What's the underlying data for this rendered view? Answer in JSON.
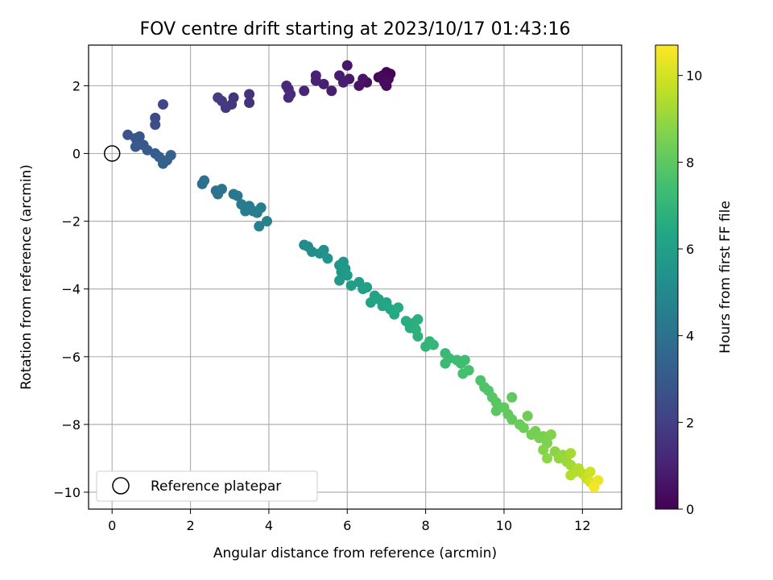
{
  "chart_data": {
    "type": "scatter",
    "title": "FOV centre drift starting at 2023/10/17 01:43:16",
    "xlabel": "Angular distance from reference (arcmin)",
    "ylabel": "Rotation from reference (arcmin)",
    "xlim": [
      -0.6,
      13.0
    ],
    "ylim": [
      -10.5,
      3.2
    ],
    "xticks": [
      0,
      2,
      4,
      6,
      8,
      10,
      12
    ],
    "yticks": [
      -10,
      -8,
      -6,
      -4,
      -2,
      0,
      2
    ],
    "grid": true,
    "colormap": "viridis",
    "colorbar": {
      "label": "Hours from first FF file",
      "range": [
        0,
        10.7
      ],
      "ticks": [
        0,
        2,
        4,
        6,
        8,
        10
      ]
    },
    "legend": {
      "position": "lower-left",
      "entries": [
        "Reference platepar"
      ]
    },
    "reference_point": {
      "x": 0,
      "y": 0
    },
    "points": [
      {
        "x": 7.0,
        "y": 2.4,
        "c": 0.05
      },
      {
        "x": 7.1,
        "y": 2.35,
        "c": 0.1
      },
      {
        "x": 6.9,
        "y": 2.3,
        "c": 0.15
      },
      {
        "x": 7.05,
        "y": 2.2,
        "c": 0.2
      },
      {
        "x": 6.8,
        "y": 2.25,
        "c": 0.25
      },
      {
        "x": 7.0,
        "y": 2.0,
        "c": 0.3
      },
      {
        "x": 6.95,
        "y": 2.1,
        "c": 0.35
      },
      {
        "x": 6.5,
        "y": 2.1,
        "c": 0.45
      },
      {
        "x": 6.3,
        "y": 2.0,
        "c": 0.55
      },
      {
        "x": 6.4,
        "y": 2.2,
        "c": 0.6
      },
      {
        "x": 6.0,
        "y": 2.6,
        "c": 0.7
      },
      {
        "x": 6.05,
        "y": 2.2,
        "c": 0.75
      },
      {
        "x": 5.8,
        "y": 2.3,
        "c": 0.8
      },
      {
        "x": 5.9,
        "y": 2.1,
        "c": 0.85
      },
      {
        "x": 5.6,
        "y": 1.85,
        "c": 0.9
      },
      {
        "x": 5.4,
        "y": 2.05,
        "c": 0.95
      },
      {
        "x": 5.2,
        "y": 2.3,
        "c": 1.0
      },
      {
        "x": 5.2,
        "y": 2.15,
        "c": 1.05
      },
      {
        "x": 4.9,
        "y": 1.85,
        "c": 1.1
      },
      {
        "x": 4.5,
        "y": 1.9,
        "c": 1.2
      },
      {
        "x": 4.45,
        "y": 2.0,
        "c": 1.25
      },
      {
        "x": 4.5,
        "y": 1.65,
        "c": 1.3
      },
      {
        "x": 4.55,
        "y": 1.75,
        "c": 1.35
      },
      {
        "x": 3.5,
        "y": 1.75,
        "c": 1.5
      },
      {
        "x": 3.5,
        "y": 1.5,
        "c": 1.55
      },
      {
        "x": 3.1,
        "y": 1.65,
        "c": 1.65
      },
      {
        "x": 3.05,
        "y": 1.45,
        "c": 1.7
      },
      {
        "x": 2.9,
        "y": 1.35,
        "c": 1.75
      },
      {
        "x": 2.8,
        "y": 1.55,
        "c": 1.8
      },
      {
        "x": 2.7,
        "y": 1.65,
        "c": 1.9
      },
      {
        "x": 1.3,
        "y": 1.45,
        "c": 2.2
      },
      {
        "x": 1.1,
        "y": 1.05,
        "c": 2.4
      },
      {
        "x": 1.1,
        "y": 0.85,
        "c": 2.5
      },
      {
        "x": 0.4,
        "y": 0.55,
        "c": 2.7
      },
      {
        "x": 0.6,
        "y": 0.45,
        "c": 2.8
      },
      {
        "x": 0.7,
        "y": 0.5,
        "c": 2.85
      },
      {
        "x": 0.65,
        "y": 0.25,
        "c": 2.9
      },
      {
        "x": 0.8,
        "y": 0.25,
        "c": 2.95
      },
      {
        "x": 0.6,
        "y": 0.2,
        "c": 3.0
      },
      {
        "x": 0.9,
        "y": 0.1,
        "c": 3.05
      },
      {
        "x": 1.1,
        "y": 0.0,
        "c": 3.15
      },
      {
        "x": 1.2,
        "y": -0.1,
        "c": 3.2
      },
      {
        "x": 1.5,
        "y": -0.05,
        "c": 3.25
      },
      {
        "x": 1.4,
        "y": -0.2,
        "c": 3.3
      },
      {
        "x": 1.3,
        "y": -0.3,
        "c": 3.35
      },
      {
        "x": 2.3,
        "y": -0.9,
        "c": 3.9
      },
      {
        "x": 2.35,
        "y": -0.8,
        "c": 3.95
      },
      {
        "x": 2.65,
        "y": -1.1,
        "c": 4.0
      },
      {
        "x": 2.7,
        "y": -1.2,
        "c": 4.05
      },
      {
        "x": 2.8,
        "y": -1.05,
        "c": 4.1
      },
      {
        "x": 3.1,
        "y": -1.2,
        "c": 4.2
      },
      {
        "x": 3.2,
        "y": -1.25,
        "c": 4.25
      },
      {
        "x": 3.3,
        "y": -1.5,
        "c": 4.35
      },
      {
        "x": 3.4,
        "y": -1.7,
        "c": 4.4
      },
      {
        "x": 3.5,
        "y": -1.55,
        "c": 4.45
      },
      {
        "x": 3.6,
        "y": -1.7,
        "c": 4.5
      },
      {
        "x": 3.7,
        "y": -1.75,
        "c": 4.55
      },
      {
        "x": 3.8,
        "y": -1.6,
        "c": 4.6
      },
      {
        "x": 3.75,
        "y": -2.15,
        "c": 4.65
      },
      {
        "x": 3.95,
        "y": -2.0,
        "c": 4.7
      },
      {
        "x": 4.9,
        "y": -2.7,
        "c": 5.1
      },
      {
        "x": 5.0,
        "y": -2.75,
        "c": 5.15
      },
      {
        "x": 5.1,
        "y": -2.9,
        "c": 5.2
      },
      {
        "x": 5.3,
        "y": -2.95,
        "c": 5.3
      },
      {
        "x": 5.4,
        "y": -2.85,
        "c": 5.35
      },
      {
        "x": 5.5,
        "y": -3.1,
        "c": 5.4
      },
      {
        "x": 5.8,
        "y": -3.3,
        "c": 5.55
      },
      {
        "x": 5.9,
        "y": -3.2,
        "c": 5.6
      },
      {
        "x": 5.85,
        "y": -3.5,
        "c": 5.65
      },
      {
        "x": 5.95,
        "y": -3.4,
        "c": 5.7
      },
      {
        "x": 5.8,
        "y": -3.75,
        "c": 5.75
      },
      {
        "x": 6.0,
        "y": -3.6,
        "c": 5.8
      },
      {
        "x": 6.1,
        "y": -3.9,
        "c": 5.9
      },
      {
        "x": 6.3,
        "y": -3.8,
        "c": 5.95
      },
      {
        "x": 6.4,
        "y": -4.0,
        "c": 6.0
      },
      {
        "x": 6.5,
        "y": -3.95,
        "c": 6.05
      },
      {
        "x": 6.7,
        "y": -4.2,
        "c": 6.15
      },
      {
        "x": 6.6,
        "y": -4.4,
        "c": 6.2
      },
      {
        "x": 6.8,
        "y": -4.3,
        "c": 6.25
      },
      {
        "x": 6.9,
        "y": -4.5,
        "c": 6.3
      },
      {
        "x": 7.0,
        "y": -4.4,
        "c": 6.35
      },
      {
        "x": 7.1,
        "y": -4.6,
        "c": 6.4
      },
      {
        "x": 7.2,
        "y": -4.75,
        "c": 6.45
      },
      {
        "x": 7.3,
        "y": -4.55,
        "c": 6.5
      },
      {
        "x": 7.5,
        "y": -4.95,
        "c": 6.6
      },
      {
        "x": 7.6,
        "y": -5.15,
        "c": 6.65
      },
      {
        "x": 7.7,
        "y": -5.0,
        "c": 6.7
      },
      {
        "x": 7.8,
        "y": -4.9,
        "c": 6.75
      },
      {
        "x": 7.75,
        "y": -5.2,
        "c": 6.8
      },
      {
        "x": 7.8,
        "y": -5.4,
        "c": 6.85
      },
      {
        "x": 8.0,
        "y": -5.7,
        "c": 6.95
      },
      {
        "x": 8.1,
        "y": -5.55,
        "c": 7.0
      },
      {
        "x": 8.2,
        "y": -5.65,
        "c": 7.05
      },
      {
        "x": 8.5,
        "y": -5.9,
        "c": 7.15
      },
      {
        "x": 8.6,
        "y": -6.05,
        "c": 7.2
      },
      {
        "x": 8.5,
        "y": -6.2,
        "c": 7.25
      },
      {
        "x": 8.8,
        "y": -6.1,
        "c": 7.3
      },
      {
        "x": 8.9,
        "y": -6.2,
        "c": 7.35
      },
      {
        "x": 9.0,
        "y": -6.1,
        "c": 7.4
      },
      {
        "x": 8.95,
        "y": -6.5,
        "c": 7.5
      },
      {
        "x": 9.1,
        "y": -6.4,
        "c": 7.55
      },
      {
        "x": 9.4,
        "y": -6.7,
        "c": 7.65
      },
      {
        "x": 9.5,
        "y": -6.9,
        "c": 7.7
      },
      {
        "x": 9.6,
        "y": -7.0,
        "c": 7.75
      },
      {
        "x": 9.7,
        "y": -7.2,
        "c": 7.85
      },
      {
        "x": 9.8,
        "y": -7.35,
        "c": 7.9
      },
      {
        "x": 9.8,
        "y": -7.6,
        "c": 7.95
      },
      {
        "x": 10.0,
        "y": -7.5,
        "c": 8.0
      },
      {
        "x": 10.2,
        "y": -7.2,
        "c": 8.05
      },
      {
        "x": 10.1,
        "y": -7.7,
        "c": 8.1
      },
      {
        "x": 10.2,
        "y": -7.85,
        "c": 8.15
      },
      {
        "x": 10.4,
        "y": -8.0,
        "c": 8.25
      },
      {
        "x": 10.5,
        "y": -8.1,
        "c": 8.3
      },
      {
        "x": 10.6,
        "y": -7.75,
        "c": 8.35
      },
      {
        "x": 10.7,
        "y": -8.3,
        "c": 8.4
      },
      {
        "x": 10.8,
        "y": -8.2,
        "c": 8.45
      },
      {
        "x": 10.9,
        "y": -8.4,
        "c": 8.5
      },
      {
        "x": 11.0,
        "y": -8.35,
        "c": 8.55
      },
      {
        "x": 11.1,
        "y": -8.55,
        "c": 8.6
      },
      {
        "x": 11.2,
        "y": -8.3,
        "c": 8.65
      },
      {
        "x": 11.0,
        "y": -8.75,
        "c": 8.7
      },
      {
        "x": 11.3,
        "y": -8.8,
        "c": 8.8
      },
      {
        "x": 11.1,
        "y": -9.0,
        "c": 8.85
      },
      {
        "x": 11.4,
        "y": -9.0,
        "c": 8.95
      },
      {
        "x": 11.5,
        "y": -8.9,
        "c": 9.0
      },
      {
        "x": 11.6,
        "y": -9.1,
        "c": 9.1
      },
      {
        "x": 11.7,
        "y": -9.2,
        "c": 9.2
      },
      {
        "x": 11.7,
        "y": -8.85,
        "c": 9.25
      },
      {
        "x": 11.8,
        "y": -9.4,
        "c": 9.35
      },
      {
        "x": 11.9,
        "y": -9.3,
        "c": 9.45
      },
      {
        "x": 11.7,
        "y": -9.5,
        "c": 9.5
      },
      {
        "x": 12.0,
        "y": -9.45,
        "c": 9.6
      },
      {
        "x": 12.1,
        "y": -9.6,
        "c": 9.75
      },
      {
        "x": 12.2,
        "y": -9.4,
        "c": 9.9
      },
      {
        "x": 12.2,
        "y": -9.7,
        "c": 10.05
      },
      {
        "x": 12.3,
        "y": -9.75,
        "c": 10.2
      },
      {
        "x": 12.4,
        "y": -9.65,
        "c": 10.4
      },
      {
        "x": 12.3,
        "y": -9.85,
        "c": 10.55
      }
    ]
  }
}
